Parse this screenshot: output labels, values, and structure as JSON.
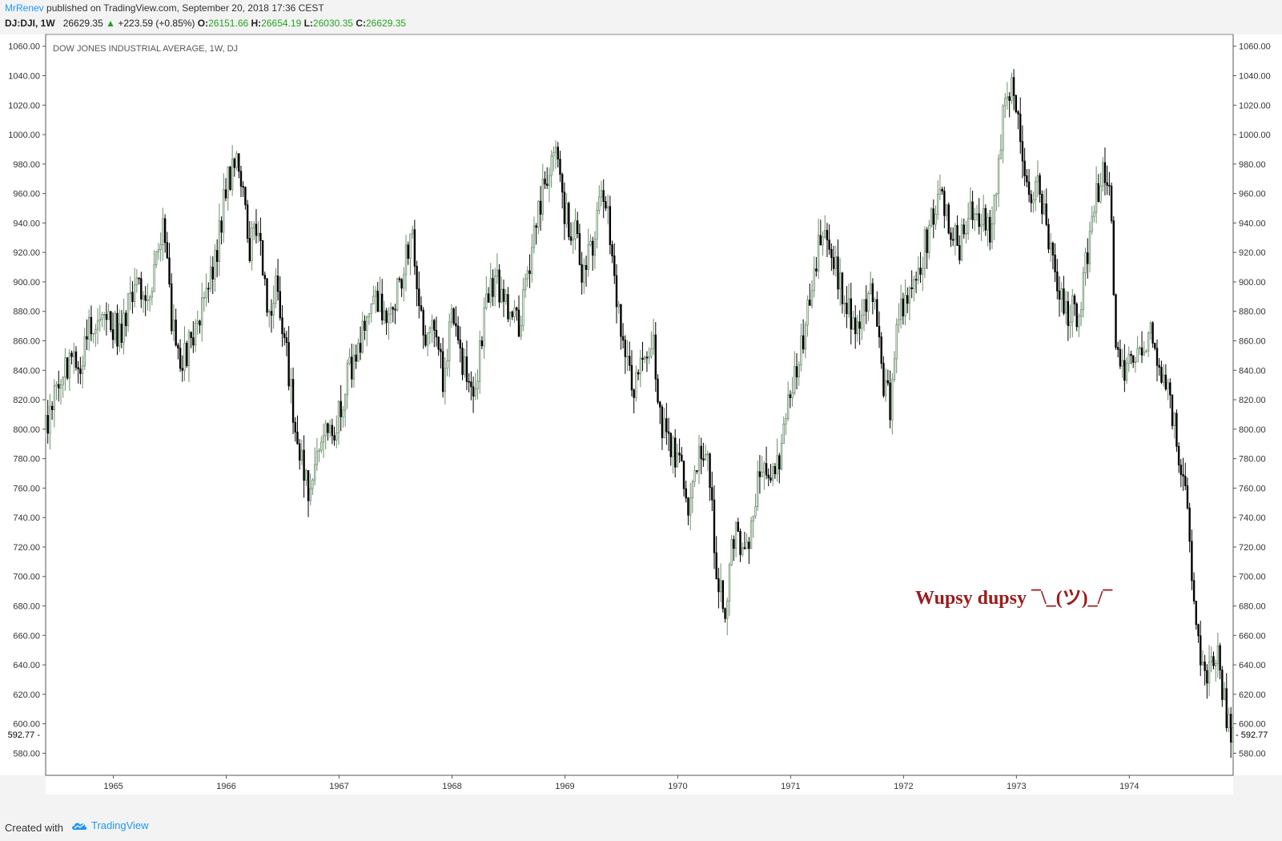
{
  "header": {
    "author": "MrRenev",
    "publish_text": " published on TradingView.com, September 20, 2018 17:36 CEST"
  },
  "quote": {
    "symbol": "DJ:DJI, 1W",
    "last": "26629.35",
    "change": "+223.59 (+0.85%)",
    "open_label": "O:",
    "open": "26151.66",
    "high_label": "H:",
    "high": "26654.19",
    "low_label": "L:",
    "low": "26030.35",
    "close_label": "C:",
    "close": "26629.35"
  },
  "colors": {
    "up_candle": "#6b8e6b",
    "down_candle": "#000000",
    "annotation": "#9b1c1c",
    "brand": "#2196f3",
    "up_text": "#22a322"
  },
  "footer": {
    "created_with": "Created with",
    "brand": "TradingView",
    "logo_icon": "tradingview-cloud-icon"
  },
  "chart_data": {
    "type": "candlestick",
    "title": "DOW JONES INDUSTRIAL AVERAGE, 1W, DJ",
    "annotation": "Wupsy dupsy ¯\\_(ツ)_/¯",
    "price_label": "592.77",
    "ylim": [
      565,
      1068
    ],
    "y_ticks": [
      580,
      600,
      620,
      640,
      660,
      680,
      700,
      720,
      740,
      760,
      780,
      800,
      820,
      840,
      860,
      880,
      900,
      920,
      940,
      960,
      980,
      1000,
      1020,
      1040,
      1060
    ],
    "x_ticks": [
      "1965",
      "1966",
      "1967",
      "1968",
      "1969",
      "1970",
      "1971",
      "1972",
      "1973",
      "1974"
    ],
    "x_range": [
      1964.4,
      1974.92
    ],
    "grid": false,
    "path": [
      [
        1964.4,
        800
      ],
      [
        1964.55,
        845
      ],
      [
        1964.7,
        842
      ],
      [
        1964.8,
        870
      ],
      [
        1964.95,
        875
      ],
      [
        1965.05,
        865
      ],
      [
        1965.2,
        895
      ],
      [
        1965.35,
        900
      ],
      [
        1965.45,
        938
      ],
      [
        1965.52,
        870
      ],
      [
        1965.6,
        845
      ],
      [
        1965.75,
        870
      ],
      [
        1965.9,
        915
      ],
      [
        1966.0,
        965
      ],
      [
        1966.1,
        990
      ],
      [
        1966.2,
        920
      ],
      [
        1966.28,
        940
      ],
      [
        1966.38,
        875
      ],
      [
        1966.45,
        900
      ],
      [
        1966.55,
        840
      ],
      [
        1966.65,
        780
      ],
      [
        1966.75,
        755
      ],
      [
        1966.85,
        800
      ],
      [
        1966.95,
        790
      ],
      [
        1967.05,
        830
      ],
      [
        1967.15,
        850
      ],
      [
        1967.3,
        890
      ],
      [
        1967.4,
        875
      ],
      [
        1967.55,
        900
      ],
      [
        1967.65,
        935
      ],
      [
        1967.75,
        860
      ],
      [
        1967.82,
        885
      ],
      [
        1967.92,
        835
      ],
      [
        1968.0,
        875
      ],
      [
        1968.1,
        840
      ],
      [
        1968.2,
        825
      ],
      [
        1968.3,
        890
      ],
      [
        1968.4,
        900
      ],
      [
        1968.5,
        885
      ],
      [
        1968.6,
        870
      ],
      [
        1968.68,
        910
      ],
      [
        1968.8,
        960
      ],
      [
        1968.92,
        985
      ],
      [
        1969.0,
        945
      ],
      [
        1969.1,
        930
      ],
      [
        1969.15,
        905
      ],
      [
        1969.25,
        930
      ],
      [
        1969.35,
        965
      ],
      [
        1969.45,
        890
      ],
      [
        1969.55,
        840
      ],
      [
        1969.6,
        825
      ],
      [
        1969.7,
        850
      ],
      [
        1969.78,
        860
      ],
      [
        1969.85,
        800
      ],
      [
        1969.95,
        790
      ],
      [
        1970.05,
        765
      ],
      [
        1970.1,
        750
      ],
      [
        1970.2,
        790
      ],
      [
        1970.28,
        770
      ],
      [
        1970.35,
        700
      ],
      [
        1970.42,
        680
      ],
      [
        1970.5,
        730
      ],
      [
        1970.6,
        710
      ],
      [
        1970.7,
        760
      ],
      [
        1970.8,
        770
      ],
      [
        1970.9,
        775
      ],
      [
        1971.0,
        830
      ],
      [
        1971.1,
        860
      ],
      [
        1971.2,
        905
      ],
      [
        1971.3,
        945
      ],
      [
        1971.42,
        900
      ],
      [
        1971.5,
        885
      ],
      [
        1971.6,
        860
      ],
      [
        1971.68,
        895
      ],
      [
        1971.75,
        880
      ],
      [
        1971.8,
        840
      ],
      [
        1971.88,
        815
      ],
      [
        1971.95,
        870
      ],
      [
        1972.05,
        900
      ],
      [
        1972.15,
        915
      ],
      [
        1972.25,
        940
      ],
      [
        1972.3,
        960
      ],
      [
        1972.4,
        940
      ],
      [
        1972.5,
        925
      ],
      [
        1972.6,
        950
      ],
      [
        1972.7,
        940
      ],
      [
        1972.78,
        930
      ],
      [
        1972.88,
        1015
      ],
      [
        1972.98,
        1035
      ],
      [
        1973.05,
        980
      ],
      [
        1973.12,
        955
      ],
      [
        1973.2,
        965
      ],
      [
        1973.28,
        930
      ],
      [
        1973.35,
        900
      ],
      [
        1973.45,
        880
      ],
      [
        1973.55,
        880
      ],
      [
        1973.65,
        930
      ],
      [
        1973.75,
        975
      ],
      [
        1973.82,
        975
      ],
      [
        1973.88,
        860
      ],
      [
        1973.95,
        835
      ],
      [
        1974.05,
        850
      ],
      [
        1974.12,
        855
      ],
      [
        1974.18,
        870
      ],
      [
        1974.25,
        850
      ],
      [
        1974.35,
        820
      ],
      [
        1974.45,
        780
      ],
      [
        1974.52,
        740
      ],
      [
        1974.58,
        680
      ],
      [
        1974.65,
        635
      ],
      [
        1974.72,
        640
      ],
      [
        1974.78,
        655
      ],
      [
        1974.85,
        610
      ],
      [
        1974.9,
        590
      ]
    ]
  }
}
